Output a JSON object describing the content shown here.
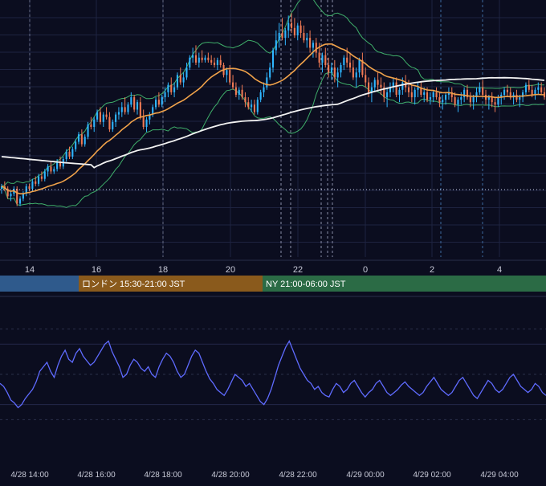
{
  "chart_data": [
    {
      "type": "candlestick",
      "x_ticks": [
        "14",
        "16",
        "18",
        "20",
        "22",
        "0",
        "2",
        "4"
      ],
      "ylim": [
        0,
        100
      ],
      "grid": true,
      "candles_ohlc": [
        [
          25,
          27,
          23,
          26
        ],
        [
          26,
          28,
          24,
          25
        ],
        [
          25,
          26,
          21,
          22
        ],
        [
          22,
          24,
          20,
          23
        ],
        [
          23,
          26,
          22,
          25
        ],
        [
          25,
          26,
          18,
          19
        ],
        [
          19,
          22,
          18,
          21
        ],
        [
          21,
          24,
          20,
          23
        ],
        [
          23,
          27,
          22,
          26
        ],
        [
          26,
          27,
          24,
          25
        ],
        [
          25,
          29,
          24,
          28
        ],
        [
          28,
          30,
          26,
          27
        ],
        [
          27,
          31,
          26,
          30
        ],
        [
          30,
          32,
          28,
          29
        ],
        [
          29,
          33,
          28,
          32
        ],
        [
          32,
          35,
          30,
          34
        ],
        [
          34,
          36,
          31,
          32
        ],
        [
          32,
          34,
          31,
          33
        ],
        [
          33,
          37,
          32,
          36
        ],
        [
          36,
          38,
          33,
          34
        ],
        [
          34,
          38,
          33,
          37
        ],
        [
          37,
          41,
          36,
          40
        ],
        [
          40,
          42,
          37,
          38
        ],
        [
          38,
          42,
          37,
          41
        ],
        [
          41,
          45,
          40,
          44
        ],
        [
          44,
          48,
          43,
          47
        ],
        [
          47,
          49,
          42,
          43
        ],
        [
          43,
          47,
          42,
          46
        ],
        [
          46,
          52,
          45,
          51
        ],
        [
          51,
          54,
          49,
          50
        ],
        [
          50,
          54,
          48,
          53
        ],
        [
          53,
          57,
          52,
          56
        ],
        [
          56,
          58,
          51,
          52
        ],
        [
          52,
          56,
          50,
          55
        ],
        [
          55,
          58,
          53,
          54
        ],
        [
          54,
          56,
          48,
          49
        ],
        [
          49,
          53,
          48,
          52
        ],
        [
          52,
          56,
          50,
          55
        ],
        [
          55,
          58,
          53,
          56
        ],
        [
          56,
          60,
          54,
          58
        ],
        [
          58,
          62,
          55,
          56
        ],
        [
          56,
          60,
          55,
          59
        ],
        [
          59,
          64,
          58,
          62
        ],
        [
          62,
          63,
          56,
          57
        ],
        [
          57,
          61,
          55,
          60
        ],
        [
          60,
          62,
          53,
          54
        ],
        [
          54,
          57,
          49,
          50
        ],
        [
          50,
          54,
          48,
          53
        ],
        [
          53,
          56,
          51,
          55
        ],
        [
          55,
          59,
          54,
          58
        ],
        [
          58,
          62,
          57,
          61
        ],
        [
          61,
          64,
          58,
          59
        ],
        [
          59,
          63,
          58,
          62
        ],
        [
          62,
          66,
          60,
          64
        ],
        [
          64,
          68,
          62,
          67
        ],
        [
          67,
          70,
          63,
          64
        ],
        [
          64,
          68,
          62,
          66
        ],
        [
          66,
          72,
          65,
          71
        ],
        [
          71,
          74,
          67,
          68
        ],
        [
          68,
          72,
          66,
          70
        ],
        [
          70,
          76,
          69,
          74
        ],
        [
          74,
          79,
          73,
          78
        ],
        [
          78,
          82,
          76,
          79
        ],
        [
          79,
          83,
          75,
          76
        ],
        [
          76,
          80,
          74,
          78
        ],
        [
          78,
          81,
          76,
          77
        ],
        [
          77,
          79,
          76,
          78
        ],
        [
          78,
          80,
          76,
          77
        ],
        [
          77,
          79,
          75,
          76
        ],
        [
          76,
          78,
          74,
          75
        ],
        [
          75,
          78,
          73,
          77
        ],
        [
          77,
          79,
          74,
          75
        ],
        [
          75,
          76,
          70,
          71
        ],
        [
          71,
          74,
          68,
          73
        ],
        [
          73,
          75,
          67,
          68
        ],
        [
          68,
          71,
          65,
          66
        ],
        [
          66,
          68,
          62,
          63
        ],
        [
          63,
          66,
          61,
          65
        ],
        [
          65,
          67,
          61,
          62
        ],
        [
          62,
          64,
          58,
          60
        ],
        [
          60,
          62,
          57,
          58
        ],
        [
          58,
          61,
          56,
          59
        ],
        [
          59,
          61,
          55,
          56
        ],
        [
          56,
          62,
          55,
          61
        ],
        [
          61,
          65,
          60,
          64
        ],
        [
          64,
          68,
          62,
          66
        ],
        [
          66,
          72,
          65,
          70
        ],
        [
          70,
          76,
          69,
          74
        ],
        [
          74,
          82,
          72,
          81
        ],
        [
          81,
          89,
          79,
          85
        ],
        [
          85,
          92,
          82,
          88
        ],
        [
          88,
          94,
          85,
          86
        ],
        [
          86,
          90,
          83,
          89
        ],
        [
          89,
          95,
          86,
          92
        ],
        [
          92,
          96,
          88,
          90
        ],
        [
          90,
          94,
          86,
          87
        ],
        [
          87,
          92,
          85,
          91
        ],
        [
          91,
          93,
          86,
          88
        ],
        [
          88,
          91,
          84,
          85
        ],
        [
          85,
          88,
          82,
          86
        ],
        [
          86,
          89,
          80,
          82
        ],
        [
          82,
          85,
          78,
          84
        ],
        [
          84,
          86,
          78,
          80
        ],
        [
          80,
          84,
          74,
          76
        ],
        [
          76,
          80,
          72,
          79
        ],
        [
          79,
          82,
          74,
          75
        ],
        [
          75,
          78,
          70,
          72
        ],
        [
          72,
          76,
          69,
          74
        ],
        [
          74,
          77,
          68,
          70
        ],
        [
          70,
          74,
          66,
          72
        ],
        [
          72,
          76,
          70,
          75
        ],
        [
          75,
          79,
          73,
          78
        ],
        [
          78,
          82,
          74,
          76
        ],
        [
          76,
          80,
          72,
          74
        ],
        [
          74,
          77,
          69,
          70
        ],
        [
          70,
          74,
          66,
          72
        ],
        [
          72,
          78,
          70,
          77
        ],
        [
          77,
          80,
          70,
          71
        ],
        [
          71,
          74,
          66,
          68
        ],
        [
          68,
          70,
          62,
          64
        ],
        [
          64,
          68,
          60,
          66
        ],
        [
          66,
          70,
          64,
          69
        ],
        [
          69,
          72,
          65,
          67
        ],
        [
          67,
          70,
          63,
          66
        ],
        [
          66,
          68,
          60,
          62
        ],
        [
          62,
          66,
          58,
          64
        ],
        [
          64,
          68,
          62,
          66
        ],
        [
          66,
          70,
          64,
          68
        ],
        [
          68,
          70,
          62,
          63
        ],
        [
          63,
          66,
          60,
          65
        ],
        [
          65,
          70,
          63,
          68
        ],
        [
          68,
          71,
          64,
          66
        ],
        [
          66,
          69,
          62,
          64
        ],
        [
          64,
          67,
          60,
          62
        ],
        [
          62,
          66,
          59,
          65
        ],
        [
          65,
          68,
          62,
          66
        ],
        [
          66,
          68,
          62,
          63
        ],
        [
          63,
          66,
          60,
          64
        ],
        [
          64,
          66,
          60,
          61
        ],
        [
          61,
          64,
          59,
          62
        ],
        [
          62,
          65,
          60,
          64
        ],
        [
          64,
          66,
          61,
          62
        ],
        [
          62,
          64,
          58,
          60
        ],
        [
          60,
          63,
          57,
          61
        ],
        [
          61,
          64,
          59,
          63
        ],
        [
          63,
          66,
          61,
          64
        ],
        [
          64,
          66,
          60,
          62
        ],
        [
          62,
          64,
          58,
          59
        ],
        [
          59,
          62,
          56,
          61
        ],
        [
          61,
          64,
          59,
          62
        ],
        [
          62,
          66,
          60,
          65
        ],
        [
          65,
          67,
          61,
          62
        ],
        [
          62,
          64,
          58,
          60
        ],
        [
          60,
          63,
          57,
          62
        ],
        [
          62,
          66,
          60,
          64
        ],
        [
          64,
          68,
          63,
          66
        ],
        [
          66,
          69,
          62,
          63
        ],
        [
          63,
          65,
          59,
          61
        ],
        [
          61,
          63,
          57,
          62
        ],
        [
          62,
          64,
          58,
          60
        ],
        [
          60,
          62,
          56,
          59
        ],
        [
          59,
          63,
          58,
          62
        ],
        [
          62,
          64,
          59,
          63
        ],
        [
          63,
          66,
          61,
          65
        ],
        [
          65,
          67,
          62,
          64
        ],
        [
          64,
          66,
          61,
          62
        ],
        [
          62,
          64,
          59,
          63
        ],
        [
          63,
          65,
          60,
          61
        ],
        [
          61,
          63,
          58,
          62
        ],
        [
          62,
          65,
          60,
          64
        ],
        [
          64,
          68,
          63,
          67
        ],
        [
          67,
          69,
          64,
          65
        ],
        [
          65,
          67,
          62,
          63
        ],
        [
          63,
          66,
          61,
          65
        ],
        [
          65,
          68,
          63,
          66
        ],
        [
          66,
          68,
          63,
          64
        ],
        [
          64,
          66,
          61,
          62
        ]
      ],
      "indicators": [
        {
          "name": "MA short",
          "color": "#f0a24a"
        },
        {
          "name": "MA long",
          "color": "#f2f2f2"
        },
        {
          "name": "Bollinger",
          "color": "#3fae6a"
        }
      ],
      "sessions": [
        {
          "label": "",
          "color": "#2f5a8c"
        },
        {
          "label": "ロンドン 15:30-21:00 JST",
          "color": "#8a5a1c"
        },
        {
          "label": "NY 21:00-06:00 JST",
          "color": "#2b6b45"
        }
      ]
    },
    {
      "type": "line",
      "ylim": [
        0,
        100
      ],
      "grid": true,
      "series_color": "#5f6bff",
      "x_ticks": [
        "4/28 14:00",
        "4/28 16:00",
        "4/28 18:00",
        "4/28 20:00",
        "4/28 22:00",
        "4/29 00:00",
        "4/29 02:00",
        "4/29 04:00"
      ],
      "values": [
        44,
        42,
        38,
        33,
        31,
        28,
        30,
        34,
        37,
        40,
        45,
        52,
        55,
        58,
        52,
        48,
        56,
        62,
        66,
        60,
        58,
        64,
        67,
        62,
        59,
        56,
        58,
        62,
        66,
        70,
        72,
        65,
        60,
        55,
        48,
        50,
        56,
        60,
        58,
        54,
        52,
        55,
        50,
        48,
        55,
        60,
        64,
        62,
        58,
        52,
        48,
        50,
        56,
        62,
        66,
        64,
        58,
        52,
        47,
        44,
        40,
        38,
        36,
        40,
        45,
        50,
        48,
        46,
        42,
        44,
        40,
        36,
        32,
        30,
        34,
        40,
        48,
        56,
        62,
        68,
        72,
        66,
        60,
        54,
        50,
        46,
        44,
        40,
        42,
        38,
        36,
        35,
        40,
        44,
        42,
        38,
        40,
        44,
        46,
        42,
        38,
        35,
        38,
        40,
        44,
        46,
        42,
        38,
        36,
        38,
        40,
        43,
        45,
        42,
        40,
        38,
        36,
        38,
        42,
        45,
        48,
        44,
        40,
        38,
        36,
        38,
        42,
        46,
        48,
        44,
        40,
        36,
        34,
        38,
        42,
        46,
        44,
        40,
        38,
        40,
        44,
        48,
        50,
        46,
        42,
        40,
        38,
        40,
        44,
        42,
        38,
        36
      ]
    }
  ]
}
